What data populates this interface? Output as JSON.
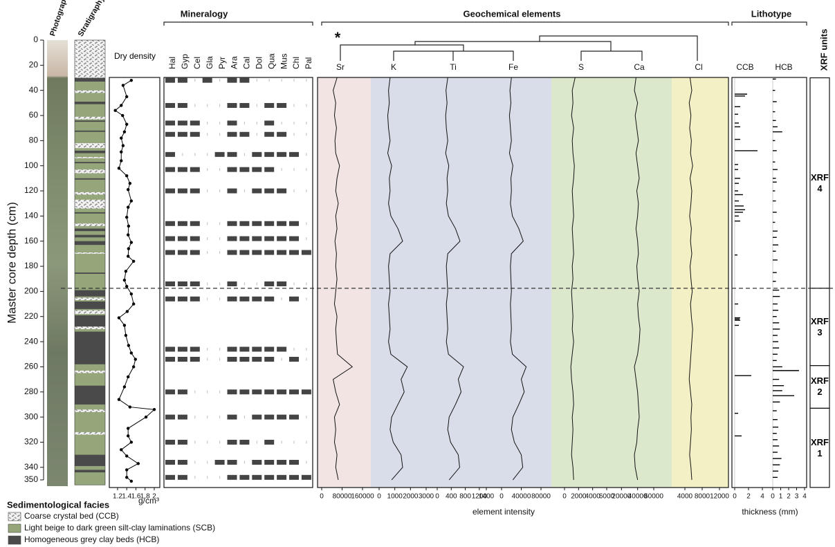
{
  "chart_data": [
    {
      "type": "stratigraphy",
      "ylabel": "Master core depth (cm)",
      "ylim": [
        0,
        350
      ],
      "yticks": [
        0,
        20,
        40,
        60,
        80,
        100,
        120,
        140,
        160,
        180,
        200,
        220,
        240,
        260,
        280,
        300,
        320,
        340,
        350
      ],
      "column_labels": [
        "Photograph",
        "Stratigraphy"
      ],
      "legend_title": "Sedimentological facies",
      "facies": [
        {
          "name": "Coarse crystal bed (CCB)",
          "color": "#8a8a8a"
        },
        {
          "name": "Light beige to dark green silt-clay laminations (SCB)",
          "color": "#94a67a"
        },
        {
          "name": "Homogeneous grey clay beds (HCB)",
          "color": "#4a4a4a"
        }
      ],
      "intervals": {
        "top": [
          30,
          0,
          30,
          40,
          49,
          61,
          64,
          72,
          82,
          88,
          93,
          97,
          103,
          110,
          121,
          127,
          137,
          146,
          150,
          155,
          160,
          169,
          185,
          199,
          205,
          208,
          215,
          219,
          228,
          232,
          263,
          275,
          294,
          312,
          330,
          342
        ],
        "bottom": [
          354,
          30,
          33,
          42,
          51,
          63,
          65,
          73,
          86,
          90,
          94,
          98,
          106,
          111,
          123,
          134,
          138,
          148,
          152,
          157,
          163,
          170,
          186,
          204,
          207,
          214,
          218,
          228,
          230,
          258,
          265,
          290,
          296,
          314,
          339,
          344
        ],
        "facies": [
          1,
          0,
          2,
          0,
          2,
          0,
          2,
          2,
          0,
          2,
          0,
          2,
          0,
          2,
          0,
          0,
          2,
          0,
          2,
          2,
          2,
          0,
          2,
          2,
          0,
          2,
          0,
          2,
          0,
          2,
          0,
          2,
          0,
          0,
          2,
          2
        ]
      }
    },
    {
      "type": "line",
      "title": "Dry density",
      "xlabel": "g/cm³",
      "xlim": [
        1.05,
        2.1
      ],
      "xticks": [
        1.2,
        1.4,
        1.6,
        1.8,
        2
      ],
      "color": "#000000",
      "depth": [
        32,
        36,
        45,
        52,
        56,
        60,
        67,
        73,
        78,
        84,
        89,
        96,
        102,
        108,
        114,
        119,
        128,
        133,
        141,
        148,
        155,
        161,
        166,
        172,
        176,
        184,
        191,
        196,
        202,
        210,
        216,
        221,
        227,
        235,
        243,
        249,
        254,
        260,
        268,
        276,
        286,
        292,
        294,
        300,
        309,
        315,
        320,
        326,
        331,
        337,
        342,
        348,
        351
      ],
      "values": [
        1.5,
        1.32,
        1.4,
        1.28,
        1.15,
        1.31,
        1.4,
        1.35,
        1.28,
        1.32,
        1.28,
        1.28,
        1.23,
        1.4,
        1.47,
        1.43,
        1.5,
        1.43,
        1.4,
        1.44,
        1.43,
        1.5,
        1.44,
        1.43,
        1.55,
        1.38,
        1.35,
        1.4,
        1.5,
        1.55,
        1.41,
        1.23,
        1.35,
        1.38,
        1.44,
        1.5,
        1.59,
        1.55,
        1.43,
        1.35,
        1.23,
        1.47,
        2,
        1.82,
        1.43,
        1.43,
        1.5,
        1.28,
        1.4,
        1.65,
        1.4,
        1.4,
        1.5
      ]
    },
    {
      "type": "presence",
      "title": "Mineralogy",
      "color": "#444444",
      "minerals": [
        "Hal",
        "Gyp",
        "Cel",
        "Gla",
        "Pyr",
        "Ara",
        "Cal",
        "Dol",
        "Qua",
        "Mus",
        "Chl",
        "Pal"
      ],
      "depth": [
        32,
        52,
        66,
        75,
        91,
        103,
        120,
        146,
        158,
        169,
        194,
        206,
        246,
        254,
        280,
        300,
        320,
        336,
        348
      ],
      "present": [
        [
          1,
          1,
          0,
          1,
          0,
          1,
          1,
          0,
          0,
          0,
          0,
          0
        ],
        [
          1,
          1,
          0,
          0,
          0,
          1,
          1,
          0,
          1,
          1,
          0,
          0
        ],
        [
          1,
          1,
          1,
          0,
          0,
          1,
          0,
          0,
          1,
          0,
          0,
          0
        ],
        [
          1,
          1,
          1,
          0,
          0,
          1,
          1,
          0,
          1,
          1,
          0,
          0
        ],
        [
          1,
          0,
          0,
          0,
          1,
          1,
          0,
          1,
          1,
          1,
          1,
          0
        ],
        [
          1,
          1,
          1,
          0,
          0,
          1,
          1,
          1,
          1,
          0,
          0,
          0
        ],
        [
          1,
          1,
          1,
          0,
          0,
          1,
          0,
          1,
          1,
          1,
          0,
          0
        ],
        [
          1,
          1,
          1,
          0,
          0,
          1,
          1,
          1,
          1,
          1,
          1,
          0
        ],
        [
          1,
          1,
          1,
          0,
          0,
          1,
          1,
          1,
          1,
          1,
          1,
          0
        ],
        [
          1,
          1,
          1,
          0,
          0,
          1,
          1,
          1,
          1,
          1,
          1,
          1
        ],
        [
          1,
          1,
          1,
          0,
          0,
          1,
          0,
          0,
          1,
          1,
          0,
          0
        ],
        [
          1,
          1,
          1,
          0,
          0,
          1,
          1,
          1,
          1,
          0,
          1,
          0
        ],
        [
          1,
          1,
          1,
          0,
          0,
          1,
          1,
          1,
          1,
          1,
          0,
          0
        ],
        [
          1,
          1,
          1,
          0,
          0,
          1,
          1,
          1,
          1,
          0,
          1,
          0
        ],
        [
          1,
          1,
          0,
          0,
          0,
          1,
          1,
          1,
          1,
          1,
          1,
          1
        ],
        [
          1,
          1,
          0,
          0,
          0,
          1,
          0,
          1,
          1,
          1,
          1,
          0
        ],
        [
          1,
          1,
          0,
          0,
          0,
          1,
          1,
          0,
          1,
          0,
          0,
          0
        ],
        [
          1,
          1,
          0,
          0,
          1,
          1,
          0,
          1,
          1,
          1,
          1,
          0
        ],
        [
          1,
          1,
          0,
          0,
          0,
          1,
          1,
          1,
          1,
          1,
          1,
          1
        ]
      ]
    },
    {
      "type": "curves",
      "title": "Geochemical elements",
      "xlabel": "element intensity",
      "annotation": "*",
      "depth": [
        30,
        40,
        50,
        60,
        70,
        80,
        90,
        100,
        110,
        120,
        130,
        140,
        150,
        160,
        170,
        180,
        190,
        200,
        210,
        220,
        230,
        240,
        250,
        260,
        270,
        280,
        290,
        300,
        310,
        320,
        330,
        340,
        350
      ],
      "series": [
        {
          "name": "Sr",
          "color": "#111111",
          "xlim": [
            0,
            160000
          ],
          "xticks": [
            0,
            80000,
            160000
          ],
          "values": [
            60000,
            45000,
            55000,
            50000,
            58000,
            52000,
            55000,
            70000,
            60000,
            55000,
            65000,
            55000,
            60000,
            52000,
            58000,
            55000,
            60000,
            55000,
            50000,
            60000,
            55000,
            58000,
            62000,
            120000,
            45000,
            55000,
            70000,
            50000,
            55000,
            50000,
            60000,
            55000,
            65000
          ]
        },
        {
          "name": "K",
          "color": "#111111",
          "xlim": [
            0,
            3000
          ],
          "xticks": [
            0,
            1000,
            2000,
            3000
          ],
          "values": [
            700,
            600,
            650,
            550,
            600,
            700,
            550,
            800,
            650,
            700,
            600,
            750,
            1200,
            1500,
            700,
            600,
            650,
            700,
            600,
            650,
            700,
            600,
            750,
            1800,
            1400,
            1600,
            1200,
            800,
            700,
            900,
            1400,
            1500,
            800
          ]
        },
        {
          "name": "Ti",
          "color": "#111111",
          "xlim": [
            0,
            1400
          ],
          "xticks": [
            0,
            400,
            800,
            1200,
            1400
          ],
          "values": [
            300,
            250,
            280,
            240,
            260,
            300,
            240,
            330,
            280,
            300,
            260,
            320,
            520,
            650,
            300,
            260,
            280,
            300,
            260,
            280,
            300,
            260,
            320,
            750,
            600,
            680,
            520,
            340,
            300,
            380,
            600,
            640,
            340
          ]
        },
        {
          "name": "Fe",
          "color": "#111111",
          "xlim": [
            0,
            80000
          ],
          "xticks": [
            0,
            40000,
            80000
          ],
          "values": [
            20000,
            17000,
            19000,
            16000,
            18000,
            20000,
            16000,
            23000,
            19000,
            20000,
            18000,
            22000,
            35000,
            44000,
            20000,
            18000,
            19000,
            20000,
            18000,
            19000,
            20000,
            18000,
            22000,
            50000,
            40000,
            46000,
            35000,
            23000,
            20000,
            26000,
            40000,
            43000,
            23000
          ]
        },
        {
          "name": "S",
          "color": "#111111",
          "xlim": [
            0,
            6000
          ],
          "xticks": [
            0,
            2000,
            4000,
            6000
          ],
          "values": [
            1500,
            1100,
            1200,
            1000,
            1300,
            1100,
            1200,
            1400,
            1300,
            1100,
            1200,
            1300,
            1100,
            1200,
            1300,
            1100,
            1200,
            1000,
            1100,
            1200,
            1100,
            1300,
            1100,
            900,
            1000,
            1200,
            1300,
            1100,
            1200,
            1100,
            1000,
            1200,
            1300
          ]
        },
        {
          "name": "Ca",
          "color": "#111111",
          "xlim": [
            0,
            60000
          ],
          "xticks": [
            20000,
            40000,
            60000
          ],
          "values": [
            38000,
            36000,
            40000,
            37000,
            39000,
            41000,
            38000,
            40000,
            42000,
            39000,
            41000,
            40000,
            38000,
            40000,
            41000,
            39000,
            40000,
            42000,
            40000,
            41000,
            43000,
            42000,
            40000,
            36000,
            38000,
            40000,
            41000,
            42000,
            40000,
            39000,
            36000,
            37000,
            40000
          ]
        },
        {
          "name": "Cl",
          "color": "#111111",
          "xlim": [
            0,
            12000
          ],
          "xticks": [
            4000,
            8000,
            12000
          ],
          "values": [
            5200,
            5600,
            5000,
            5400,
            5100,
            5500,
            5300,
            5800,
            5200,
            5600,
            5400,
            5100,
            5500,
            5300,
            5600,
            5200,
            5400,
            5700,
            5300,
            5500,
            5800,
            5600,
            5400,
            5200,
            5000,
            5300,
            5600,
            5400,
            5500,
            5300,
            5100,
            5400,
            5600
          ]
        }
      ]
    },
    {
      "type": "bars",
      "title": "Lithotype",
      "xlabel": "thickness (mm)",
      "color": "#000000",
      "series": [
        {
          "name": "CCB",
          "xlim": [
            0,
            4
          ],
          "xticks": [
            0,
            2,
            4
          ],
          "depth": [
            43,
            44.5,
            53,
            59,
            66,
            69,
            79,
            88,
            99,
            103,
            110,
            114,
            120,
            123,
            128,
            132,
            135,
            137,
            140,
            144,
            171,
            210,
            221,
            222,
            223,
            227,
            267,
            297,
            315
          ],
          "values": [
            1.8,
            1.5,
            0.8,
            0.5,
            0.6,
            0.8,
            0.8,
            3.3,
            0.5,
            0.5,
            0.8,
            0.6,
            0.5,
            1.2,
            0.6,
            1.3,
            1.5,
            1.2,
            0.6,
            0.8,
            0.4,
            0.5,
            0.8,
            0.7,
            0.8,
            0.6,
            2.4,
            0.5,
            1
          ]
        },
        {
          "name": "HCB",
          "xlim": [
            0,
            4
          ],
          "xticks": [
            0,
            1,
            2,
            3,
            4
          ],
          "depth": [
            31,
            40,
            49,
            57,
            64,
            69,
            73,
            80,
            88,
            97,
            103,
            110,
            113,
            120,
            128,
            137,
            145,
            152,
            157,
            163,
            168,
            175,
            185,
            192,
            199,
            204,
            210,
            215,
            220,
            225,
            230,
            235,
            240,
            245,
            250,
            255,
            260,
            263,
            270,
            275,
            279,
            283,
            288,
            295,
            302,
            308,
            313,
            318,
            323,
            328,
            333,
            338,
            343,
            348
          ],
          "values": [
            0.4,
            0.3,
            0.5,
            0.3,
            0.4,
            0.6,
            1.2,
            0.3,
            0.5,
            0.3,
            0.6,
            0.4,
            0.5,
            0.3,
            0.4,
            0.5,
            0.3,
            0.6,
            0.5,
            0.7,
            0.4,
            0.6,
            0.5,
            0.4,
            0.8,
            0.9,
            0.6,
            0.7,
            0.5,
            0.8,
            0.9,
            0.6,
            0.7,
            0.8,
            0.6,
            0.5,
            1.2,
            3.3,
            0.8,
            1.4,
            1.2,
            2.7,
            0.9,
            0.5,
            0.6,
            0.7,
            0.5,
            0.6,
            0.8,
            0.6,
            1.1,
            0.9,
            0.7,
            0.6
          ]
        }
      ]
    },
    {
      "type": "units",
      "title": "XRF units",
      "units": [
        {
          "name": "XRF 4",
          "top": 30,
          "bottom": 197.5
        },
        {
          "name": "XRF 3",
          "top": 197.5,
          "bottom": 259
        },
        {
          "name": "XRF 2",
          "top": 259,
          "bottom": 293
        },
        {
          "name": "XRF 1",
          "top": 293,
          "bottom": 356
        }
      ]
    }
  ]
}
